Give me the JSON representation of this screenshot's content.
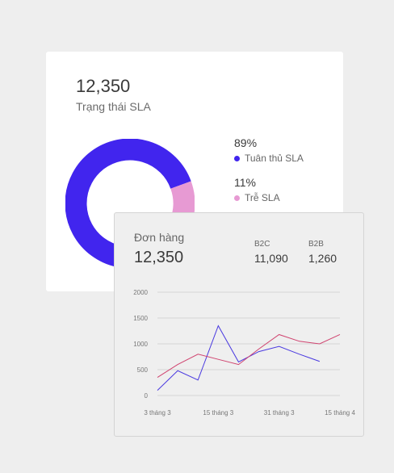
{
  "sla_card": {
    "total": "12,350",
    "title": "Trạng thái SLA",
    "legend": [
      {
        "percent": "89%",
        "label": "Tuân thủ SLA",
        "color": "#4125ee"
      },
      {
        "percent": "11%",
        "label": "Trễ SLA",
        "color": "#e79ad3"
      }
    ]
  },
  "orders_card": {
    "title": "Đơn hàng",
    "total": "12,350",
    "stats": [
      {
        "label": "B2C",
        "value": "11,090"
      },
      {
        "label": "B2B",
        "value": "1,260"
      }
    ]
  },
  "chart_data": [
    {
      "type": "pie",
      "categories": [
        "Tuân thủ SLA",
        "Trễ SLA"
      ],
      "values": [
        89,
        11
      ],
      "colors": [
        "#4125ee",
        "#e79ad3"
      ]
    },
    {
      "type": "line",
      "x": [
        "3 tháng 3",
        "",
        "",
        "15 tháng 3",
        "",
        "",
        "31 tháng 3",
        "",
        "",
        "15 tháng 4"
      ],
      "series": [
        {
          "name": "B2C",
          "color": "#4a3ae0",
          "values": [
            100,
            480,
            300,
            1350,
            650,
            850,
            950,
            800,
            660,
            null
          ]
        },
        {
          "name": "B2B",
          "color": "#d0436f",
          "values": [
            350,
            600,
            800,
            700,
            600,
            900,
            1180,
            1050,
            1000,
            1180
          ]
        }
      ],
      "y_ticks": [
        "2000",
        "1500",
        "1000",
        "500",
        "0"
      ],
      "ylim": [
        0,
        2000
      ],
      "grid": true
    }
  ]
}
